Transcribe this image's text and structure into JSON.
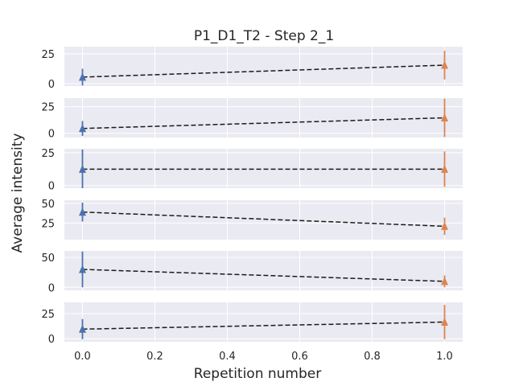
{
  "chart_data": {
    "type": "line",
    "title": "P1_D1_T2 - Step 2_1",
    "xlabel": "Repetition number",
    "ylabel": "Average intensity",
    "grid": true,
    "xlim": [
      -0.05,
      1.05
    ],
    "x_ticks": [
      0.0,
      0.2,
      0.4,
      0.6,
      0.8,
      1.0
    ],
    "x_tick_labels": [
      "0.0",
      "0.2",
      "0.4",
      "0.6",
      "0.8",
      "1.0"
    ],
    "marker": "triangle",
    "line_style": "dashed",
    "colors": {
      "first": "#4c72b0",
      "second": "#dd8452",
      "line": "#1a1a1a",
      "panel_bg": "#eaeaf2",
      "grid": "#ffffff"
    },
    "panels": [
      {
        "ylim": [
          -2,
          31
        ],
        "yticks": [
          0,
          25
        ],
        "points": [
          {
            "x": 0,
            "y": 5.5,
            "err": 7
          },
          {
            "x": 1,
            "y": 15.5,
            "err": 12
          }
        ]
      },
      {
        "ylim": [
          -4,
          33
        ],
        "yticks": [
          0,
          25
        ],
        "points": [
          {
            "x": 0,
            "y": 4.5,
            "err": 7
          },
          {
            "x": 1,
            "y": 14.5,
            "err": 18
          }
        ]
      },
      {
        "ylim": [
          -2,
          28
        ],
        "yticks": [
          0,
          25
        ],
        "points": [
          {
            "x": 0,
            "y": 12.5,
            "err": 15
          },
          {
            "x": 1,
            "y": 12.5,
            "err": 13.5
          }
        ]
      },
      {
        "ylim": [
          4,
          54
        ],
        "yticks": [
          25,
          50
        ],
        "points": [
          {
            "x": 0,
            "y": 39,
            "err": 12
          },
          {
            "x": 1,
            "y": 21,
            "err": 11
          }
        ]
      },
      {
        "ylim": [
          -5,
          61
        ],
        "yticks": [
          0,
          50
        ],
        "points": [
          {
            "x": 0,
            "y": 30,
            "err": 30
          },
          {
            "x": 1,
            "y": 10,
            "err": 10
          }
        ]
      },
      {
        "ylim": [
          -3,
          36
        ],
        "yticks": [
          0,
          25
        ],
        "points": [
          {
            "x": 0,
            "y": 9.5,
            "err": 10
          },
          {
            "x": 1,
            "y": 16.5,
            "err": 17
          }
        ]
      }
    ]
  }
}
